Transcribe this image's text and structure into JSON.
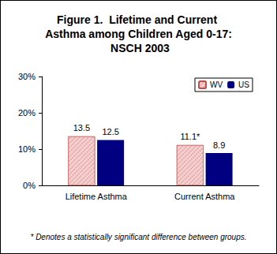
{
  "chart_data": {
    "type": "bar",
    "title": "Figure 1.  Lifetime and Current Asthma among Children Aged 0-17: NSCH 2003",
    "categories": [
      "Lifetime Asthma",
      "Current Asthma"
    ],
    "series": [
      {
        "name": "WV",
        "color": "#f6d3d3",
        "values": [
          13.5,
          11.1
        ],
        "value_labels": [
          "13.5",
          "11.1*"
        ]
      },
      {
        "name": "US",
        "color": "#000080",
        "values": [
          12.5,
          8.9
        ],
        "value_labels": [
          "12.5",
          "8.9"
        ]
      }
    ],
    "ylim": [
      0,
      30
    ],
    "yticks": [
      {
        "value": 0,
        "label": "0%"
      },
      {
        "value": 10,
        "label": "10%"
      },
      {
        "value": 20,
        "label": "20%"
      },
      {
        "value": 30,
        "label": "30%"
      }
    ],
    "grid": false,
    "legend": "upper right",
    "data_labels": true,
    "annotation": "* Denotes a statistically significant difference between groups."
  }
}
